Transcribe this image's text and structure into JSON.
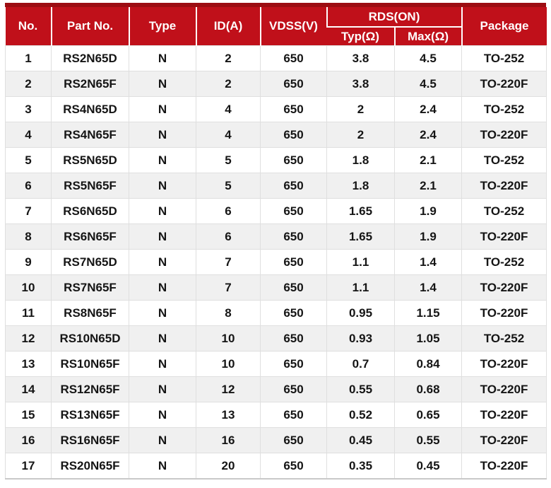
{
  "colors": {
    "header_bg": "#C0101A",
    "header_top_border": "#9C0D12",
    "header_text": "#FFFFFF",
    "row_alt_bg": "#F0F0F0",
    "cell_border": "#DFDFDF",
    "body_text": "#151515"
  },
  "table": {
    "columns": [
      {
        "key": "no",
        "label": "No."
      },
      {
        "key": "part_no",
        "label": "Part No."
      },
      {
        "key": "type",
        "label": "Type"
      },
      {
        "key": "id_a",
        "label": "ID(A)"
      },
      {
        "key": "vdss_v",
        "label": "VDSS(V)"
      },
      {
        "key": "typ_ohm",
        "label": "Typ(Ω)"
      },
      {
        "key": "max_ohm",
        "label": "Max(Ω)"
      },
      {
        "key": "package",
        "label": "Package"
      }
    ],
    "rds_group_label": "RDS(ON)",
    "rows": [
      [
        "1",
        "RS2N65D",
        "N",
        "2",
        "650",
        "3.8",
        "4.5",
        "TO-252"
      ],
      [
        "2",
        "RS2N65F",
        "N",
        "2",
        "650",
        "3.8",
        "4.5",
        "TO-220F"
      ],
      [
        "3",
        "RS4N65D",
        "N",
        "4",
        "650",
        "2",
        "2.4",
        "TO-252"
      ],
      [
        "4",
        "RS4N65F",
        "N",
        "4",
        "650",
        "2",
        "2.4",
        "TO-220F"
      ],
      [
        "5",
        "RS5N65D",
        "N",
        "5",
        "650",
        "1.8",
        "2.1",
        "TO-252"
      ],
      [
        "6",
        "RS5N65F",
        "N",
        "5",
        "650",
        "1.8",
        "2.1",
        "TO-220F"
      ],
      [
        "7",
        "RS6N65D",
        "N",
        "6",
        "650",
        "1.65",
        "1.9",
        "TO-252"
      ],
      [
        "8",
        "RS6N65F",
        "N",
        "6",
        "650",
        "1.65",
        "1.9",
        "TO-220F"
      ],
      [
        "9",
        "RS7N65D",
        "N",
        "7",
        "650",
        "1.1",
        "1.4",
        "TO-252"
      ],
      [
        "10",
        "RS7N65F",
        "N",
        "7",
        "650",
        "1.1",
        "1.4",
        "TO-220F"
      ],
      [
        "11",
        "RS8N65F",
        "N",
        "8",
        "650",
        "0.95",
        "1.15",
        "TO-220F"
      ],
      [
        "12",
        "RS10N65D",
        "N",
        "10",
        "650",
        "0.93",
        "1.05",
        "TO-252"
      ],
      [
        "13",
        "RS10N65F",
        "N",
        "10",
        "650",
        "0.7",
        "0.84",
        "TO-220F"
      ],
      [
        "14",
        "RS12N65F",
        "N",
        "12",
        "650",
        "0.55",
        "0.68",
        "TO-220F"
      ],
      [
        "15",
        "RS13N65F",
        "N",
        "13",
        "650",
        "0.52",
        "0.65",
        "TO-220F"
      ],
      [
        "16",
        "RS16N65F",
        "N",
        "16",
        "650",
        "0.45",
        "0.55",
        "TO-220F"
      ],
      [
        "17",
        "RS20N65F",
        "N",
        "20",
        "650",
        "0.35",
        "0.45",
        "TO-220F"
      ]
    ]
  }
}
